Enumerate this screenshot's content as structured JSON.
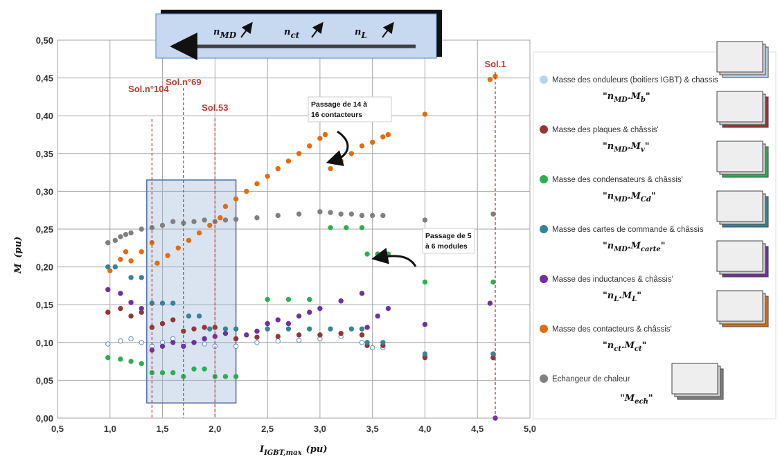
{
  "chart_data": {
    "type": "scatter",
    "xlabel": [
      "I",
      "IGBT,max",
      "(pu)"
    ],
    "ylabel": [
      "M",
      "(pu)"
    ],
    "xlim": [
      0.5,
      5.0
    ],
    "ylim": [
      0,
      0.5
    ],
    "xticks": [
      {
        "value": 0.5,
        "label": "0,5"
      },
      {
        "value": 1.0,
        "label": "1,0"
      },
      {
        "value": 1.5,
        "label": "1,5"
      },
      {
        "value": 2.0,
        "label": "2,0"
      },
      {
        "value": 2.5,
        "label": "2,5"
      },
      {
        "value": 3.0,
        "label": "3,0"
      },
      {
        "value": 3.5,
        "label": "3,5"
      },
      {
        "value": 4.0,
        "label": "4,0"
      },
      {
        "value": 4.5,
        "label": "4,5"
      },
      {
        "value": 5.0,
        "label": "5,0"
      }
    ],
    "yticks": [
      {
        "value": 0,
        "label": "0,00"
      },
      {
        "value": 0.05,
        "label": "0,05"
      },
      {
        "value": 0.1,
        "label": "0,10"
      },
      {
        "value": 0.15,
        "label": "0,15"
      },
      {
        "value": 0.2,
        "label": "0,20"
      },
      {
        "value": 0.25,
        "label": "0,25"
      },
      {
        "value": 0.3,
        "label": "0,30"
      },
      {
        "value": 0.35,
        "label": "0,35"
      },
      {
        "value": 0.4,
        "label": "0,40"
      },
      {
        "value": 0.45,
        "label": "0,45"
      },
      {
        "value": 0.5,
        "label": "0,50"
      }
    ],
    "grid": true,
    "banner": [
      [
        "n",
        "MD"
      ],
      [
        "n",
        "ct"
      ],
      [
        "n",
        "L"
      ]
    ],
    "highlight": {
      "x": [
        1.35,
        2.2
      ],
      "y": [
        0.02,
        0.315
      ]
    },
    "annotations": [
      {
        "text": "Sol.1",
        "x": 4.67
      },
      {
        "text": "Sol.53",
        "x": 2.0
      },
      {
        "text": "Sol.n°69",
        "x": 1.7
      },
      {
        "text": "Sol.n°104",
        "x": 1.4
      }
    ],
    "notes": [
      [
        "Passage de 14 à",
        "16 contacteurs"
      ],
      [
        "Passage de 5",
        "à 6 modules"
      ]
    ],
    "series": [
      {
        "name": "Masse des onduleurs (boitiers IGBT) & chassis",
        "formula": [
          "\"n",
          "MD",
          ".M",
          "b",
          "\""
        ],
        "color": "#b9d3ee",
        "hollow": true,
        "x": [
          0.98,
          1.1,
          1.2,
          1.3,
          1.4,
          1.5,
          1.6,
          1.7,
          1.8,
          1.9,
          2.0,
          2.2,
          2.4,
          2.6,
          2.8,
          3.0,
          3.2,
          3.4,
          3.5,
          3.6,
          4.0,
          4.65
        ],
        "values": [
          0.098,
          0.102,
          0.105,
          0.1,
          0.095,
          0.1,
          0.105,
          0.098,
          0.1,
          0.098,
          0.095,
          0.095,
          0.1,
          0.102,
          0.103,
          0.105,
          0.108,
          0.1,
          0.093,
          0.093,
          0.082,
          0.08
        ]
      },
      {
        "name": "Masse des plaques & châssis'",
        "formula": [
          "\"n",
          "MD",
          ".M",
          "v",
          "\""
        ],
        "color": "#943634",
        "x": [
          0.98,
          1.1,
          1.2,
          1.3,
          1.4,
          1.5,
          1.6,
          1.7,
          1.8,
          1.9,
          2.0,
          2.2,
          2.4,
          2.6,
          2.8,
          3.0,
          3.2,
          3.4,
          3.45,
          3.6,
          4.0,
          4.65
        ],
        "values": [
          0.14,
          0.145,
          0.135,
          0.14,
          0.12,
          0.125,
          0.13,
          0.115,
          0.118,
          0.12,
          0.12,
          0.105,
          0.107,
          0.108,
          0.11,
          0.11,
          0.112,
          0.11,
          0.096,
          0.096,
          0.08,
          0.08
        ]
      },
      {
        "name": "Masse des condensateurs & châssis'",
        "formula": [
          "\"n",
          "MD",
          ".M",
          "Cd",
          "\""
        ],
        "color": "#2bb04f",
        "x": [
          0.98,
          1.1,
          1.2,
          1.3,
          1.4,
          1.5,
          1.6,
          1.7,
          1.8,
          1.9,
          2.0,
          2.1,
          2.2,
          2.5,
          2.7,
          2.9,
          3.1,
          3.25,
          3.4,
          3.45,
          3.55,
          3.65,
          4.0,
          4.65
        ],
        "values": [
          0.08,
          0.078,
          0.075,
          0.072,
          0.06,
          0.06,
          0.06,
          0.055,
          0.065,
          0.065,
          0.055,
          0.055,
          0.055,
          0.157,
          0.157,
          0.157,
          0.252,
          0.252,
          0.252,
          0.217,
          0.217,
          0.217,
          0.18,
          0.18
        ]
      },
      {
        "name": "Masse des cartes de commande & châssis",
        "formula": [
          "\"n",
          "MD",
          ".M",
          "carte",
          "\""
        ],
        "color": "#31859c",
        "x": [
          0.98,
          1.05,
          1.2,
          1.3,
          1.4,
          1.5,
          1.6,
          1.75,
          1.85,
          1.95,
          2.1,
          2.2,
          2.5,
          2.7,
          2.9,
          3.1,
          3.3,
          3.4,
          3.45,
          3.6,
          4.0,
          4.65
        ],
        "values": [
          0.2,
          0.2,
          0.186,
          0.186,
          0.152,
          0.152,
          0.152,
          0.135,
          0.135,
          0.118,
          0.118,
          0.118,
          0.118,
          0.118,
          0.118,
          0.118,
          0.118,
          0.118,
          0.1,
          0.1,
          0.085,
          0.085
        ]
      },
      {
        "name": "Masse des inductances & châssis'",
        "formula": [
          "\"n",
          "L",
          ".M",
          "L",
          "\""
        ],
        "color": "#7030a0",
        "x": [
          0.98,
          1.1,
          1.2,
          1.3,
          1.4,
          1.5,
          1.6,
          1.7,
          1.8,
          1.9,
          2.0,
          2.1,
          2.3,
          2.4,
          2.5,
          2.6,
          2.7,
          2.8,
          2.9,
          3.0,
          3.2,
          3.4,
          3.45,
          3.55,
          3.65,
          4.0,
          4.62,
          4.67
        ],
        "values": [
          0.17,
          0.165,
          0.153,
          0.145,
          0.09,
          0.095,
          0.1,
          0.095,
          0.1,
          0.105,
          0.108,
          0.112,
          0.11,
          0.115,
          0.125,
          0.13,
          0.125,
          0.135,
          0.14,
          0.145,
          0.155,
          0.165,
          0.12,
          0.135,
          0.145,
          0.124,
          0.152,
          0.0
        ]
      },
      {
        "name": "Masse des contacteurs & châssis'",
        "formula": [
          "\"n",
          "ct",
          ".M",
          "ct",
          "\""
        ],
        "color": "#e46c0a",
        "x": [
          1.0,
          1.1,
          1.15,
          1.2,
          1.3,
          1.4,
          1.45,
          1.55,
          1.65,
          1.75,
          1.85,
          1.95,
          2.05,
          2.1,
          2.2,
          2.3,
          2.4,
          2.5,
          2.6,
          2.7,
          2.8,
          2.9,
          3.0,
          3.05,
          3.1,
          3.2,
          3.3,
          3.4,
          3.5,
          3.6,
          3.65,
          4.0,
          4.62,
          4.67
        ],
        "values": [
          0.195,
          0.21,
          0.22,
          0.208,
          0.22,
          0.232,
          0.205,
          0.215,
          0.225,
          0.235,
          0.245,
          0.255,
          0.265,
          0.28,
          0.29,
          0.3,
          0.31,
          0.32,
          0.33,
          0.34,
          0.35,
          0.36,
          0.37,
          0.375,
          0.33,
          0.34,
          0.35,
          0.36,
          0.365,
          0.372,
          0.375,
          0.402,
          0.448,
          0.452
        ]
      },
      {
        "name": "Echangeur de chaleur",
        "formula": [
          "\"M",
          "ech",
          "\""
        ],
        "color": "#808080",
        "x": [
          0.98,
          1.05,
          1.1,
          1.15,
          1.2,
          1.3,
          1.4,
          1.5,
          1.6,
          1.7,
          1.8,
          1.9,
          2.0,
          2.1,
          2.2,
          2.4,
          2.6,
          2.8,
          3.0,
          3.1,
          3.2,
          3.3,
          3.4,
          3.5,
          3.6,
          4.0,
          4.65
        ],
        "values": [
          0.232,
          0.235,
          0.24,
          0.243,
          0.245,
          0.25,
          0.252,
          0.255,
          0.26,
          0.258,
          0.26,
          0.262,
          0.26,
          0.262,
          0.263,
          0.265,
          0.268,
          0.27,
          0.273,
          0.272,
          0.27,
          0.27,
          0.268,
          0.268,
          0.268,
          0.262,
          0.27
        ]
      }
    ]
  }
}
